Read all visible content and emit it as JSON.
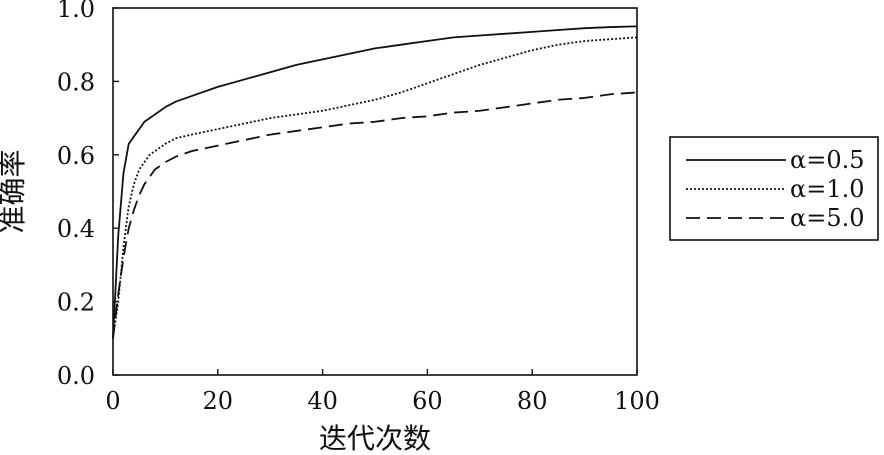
{
  "chart_data": {
    "type": "line",
    "title": "",
    "xlabel": "迭代次数",
    "ylabel": "准确率",
    "xlim": [
      0,
      100
    ],
    "ylim": [
      0.0,
      1.0
    ],
    "xticks": [
      "0",
      "20",
      "40",
      "60",
      "80",
      "100"
    ],
    "yticks": [
      "0.0",
      "0.2",
      "0.4",
      "0.6",
      "0.8",
      "1.0"
    ],
    "grid": false,
    "legend_position": "right",
    "x": [
      0,
      1,
      2,
      3,
      4,
      5,
      6,
      7,
      8,
      10,
      12,
      15,
      20,
      25,
      30,
      35,
      40,
      45,
      50,
      55,
      60,
      65,
      70,
      75,
      80,
      85,
      90,
      95,
      100
    ],
    "series": [
      {
        "name": "α=0.5",
        "dash": "solid",
        "values": [
          0.1,
          0.38,
          0.55,
          0.63,
          0.65,
          0.67,
          0.69,
          0.7,
          0.71,
          0.73,
          0.745,
          0.76,
          0.785,
          0.805,
          0.825,
          0.845,
          0.86,
          0.875,
          0.89,
          0.9,
          0.91,
          0.92,
          0.925,
          0.93,
          0.935,
          0.94,
          0.945,
          0.948,
          0.95
        ]
      },
      {
        "name": "α=1.0",
        "dash": "dotted",
        "values": [
          0.1,
          0.2,
          0.35,
          0.46,
          0.52,
          0.56,
          0.58,
          0.6,
          0.61,
          0.63,
          0.645,
          0.655,
          0.67,
          0.685,
          0.7,
          0.71,
          0.72,
          0.735,
          0.75,
          0.77,
          0.795,
          0.82,
          0.845,
          0.865,
          0.885,
          0.9,
          0.91,
          0.915,
          0.92
        ]
      },
      {
        "name": "α=5.0",
        "dash": "dashed",
        "values": [
          0.1,
          0.22,
          0.32,
          0.4,
          0.45,
          0.49,
          0.52,
          0.54,
          0.56,
          0.58,
          0.595,
          0.61,
          0.625,
          0.64,
          0.655,
          0.665,
          0.675,
          0.685,
          0.69,
          0.7,
          0.705,
          0.715,
          0.72,
          0.73,
          0.74,
          0.75,
          0.755,
          0.765,
          0.77
        ]
      }
    ]
  }
}
